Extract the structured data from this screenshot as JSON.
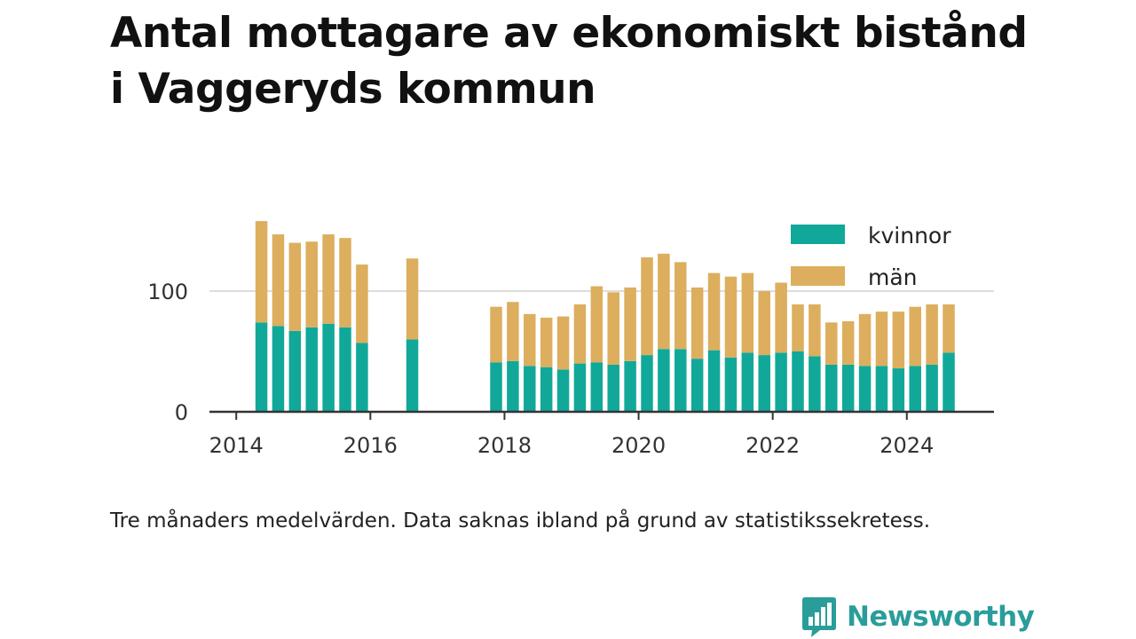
{
  "note": "Tre månaders medelvärden. Data saknas ibland på grund av statistikssekretess.",
  "brand": {
    "name": "Newsworthy",
    "color": "#2a9d9a",
    "logo_icon": "bar-chart-speech-bubble-icon"
  },
  "colors": {
    "kvinnor": "#11a899",
    "man": "#dcae5e",
    "axis": "#333333",
    "grid": "#dddddd"
  },
  "chart_data": {
    "type": "bar",
    "stacked": true,
    "title": "Antal mottagare av ekonomiskt bistånd i Vaggeryds kommun",
    "xlabel": "",
    "ylabel": "",
    "xlim": [
      2013.6,
      2025.3
    ],
    "ylim": [
      0,
      160
    ],
    "x_ticks": [
      2014,
      2016,
      2018,
      2020,
      2022,
      2024
    ],
    "y_ticks": [
      0,
      100
    ],
    "grid": "horizontal",
    "legend_position": "top-right",
    "x": [
      2014.375,
      2014.625,
      2014.875,
      2015.125,
      2015.375,
      2015.625,
      2015.875,
      2016.625,
      2017.875,
      2018.125,
      2018.375,
      2018.625,
      2018.875,
      2019.125,
      2019.375,
      2019.625,
      2019.875,
      2020.125,
      2020.375,
      2020.625,
      2020.875,
      2021.125,
      2021.375,
      2021.625,
      2021.875,
      2022.125,
      2022.375,
      2022.625,
      2022.875,
      2023.125,
      2023.375,
      2023.625,
      2023.875,
      2024.125,
      2024.375,
      2024.625
    ],
    "series": [
      {
        "name": "kvinnor",
        "values": [
          74,
          71,
          67,
          70,
          73,
          70,
          57,
          60,
          41,
          42,
          38,
          37,
          35,
          40,
          41,
          39,
          42,
          47,
          52,
          52,
          44,
          51,
          45,
          49,
          47,
          49,
          50,
          46,
          39,
          39,
          38,
          38,
          36,
          38,
          39,
          49
        ]
      },
      {
        "name": "män",
        "values": [
          84,
          76,
          73,
          71,
          74,
          74,
          65,
          67,
          46,
          49,
          43,
          41,
          44,
          49,
          63,
          60,
          61,
          81,
          79,
          72,
          59,
          64,
          67,
          66,
          53,
          58,
          39,
          43,
          35,
          36,
          43,
          45,
          47,
          49,
          50,
          40
        ]
      }
    ]
  }
}
